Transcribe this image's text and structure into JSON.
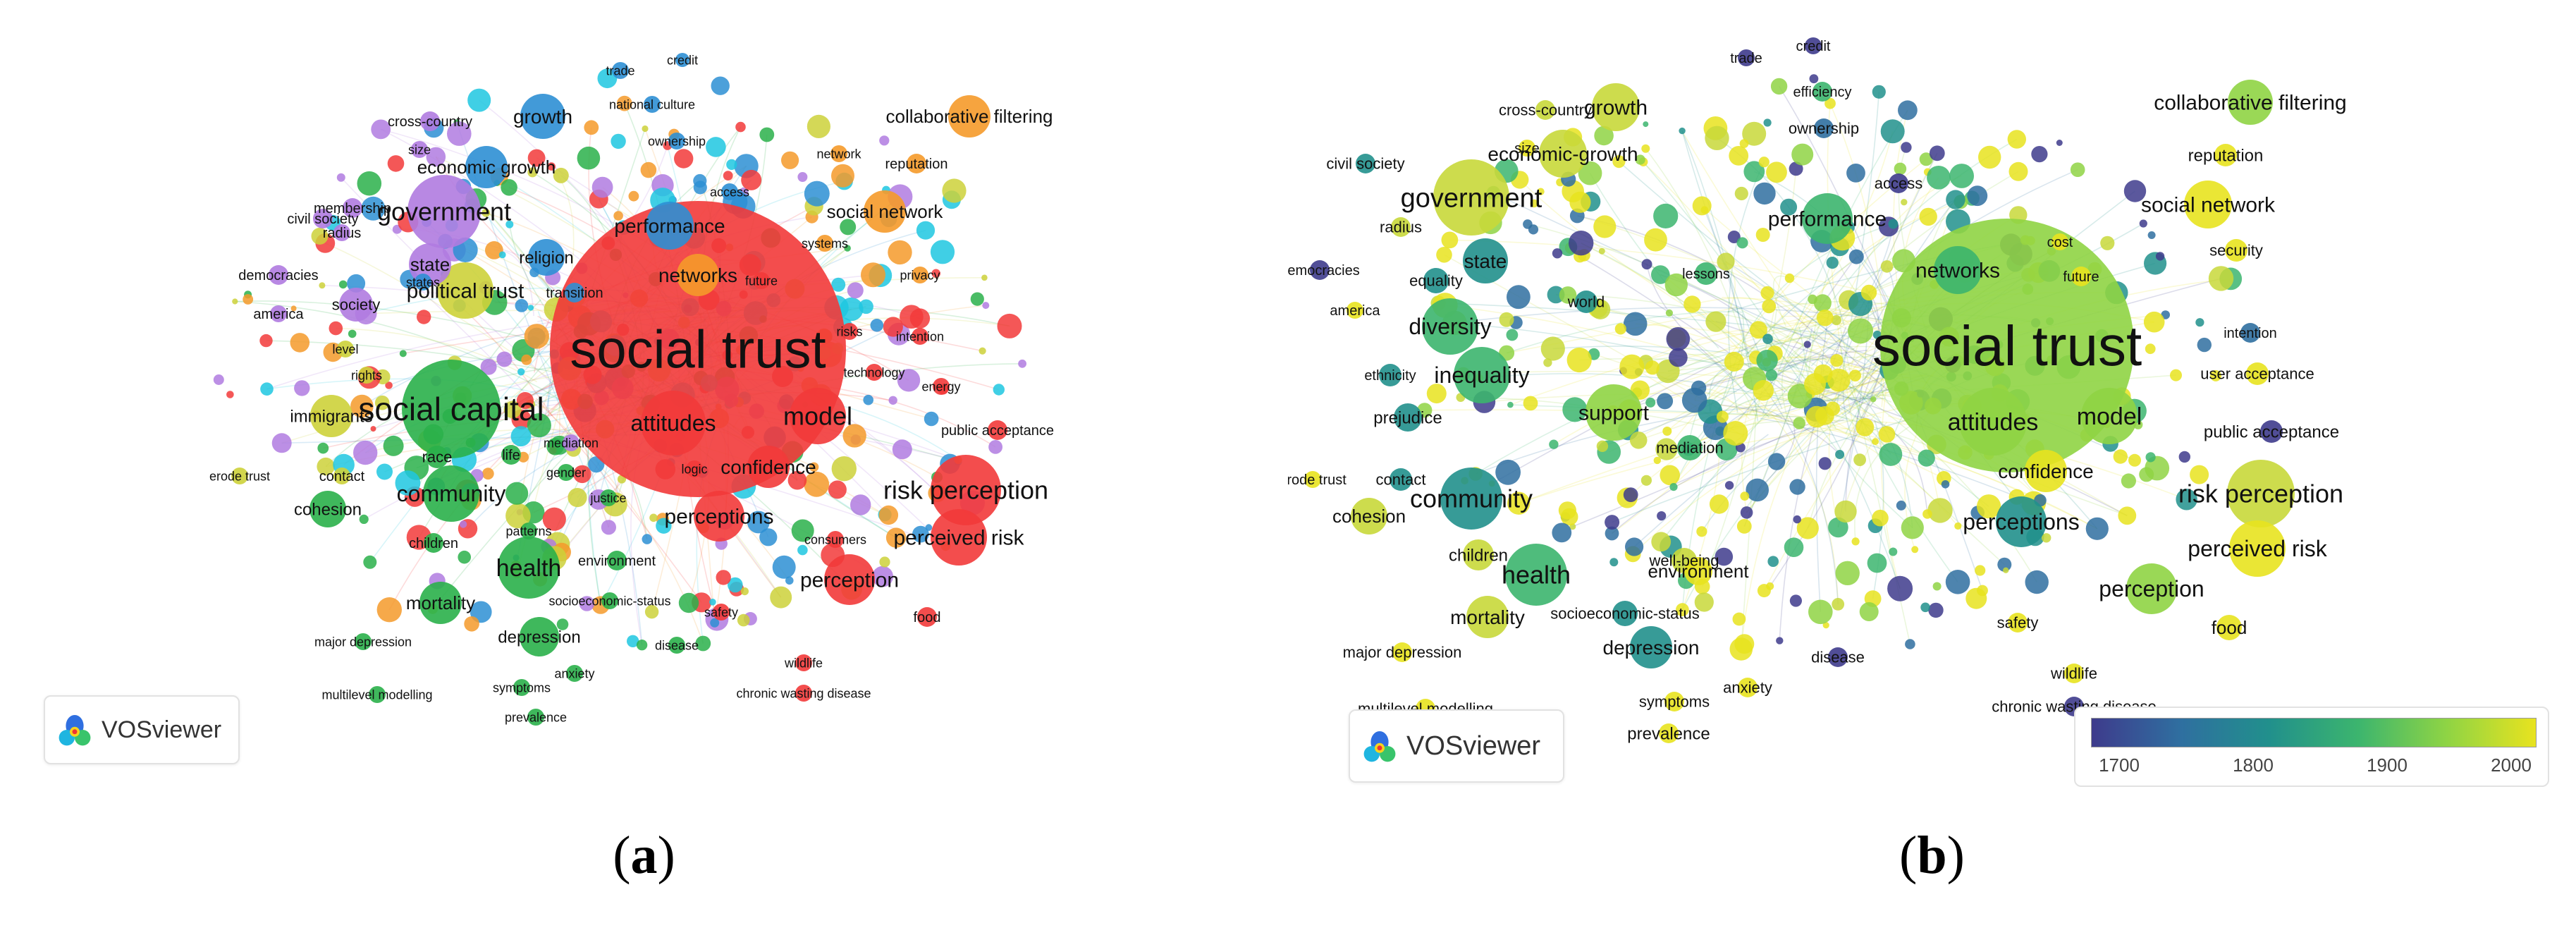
{
  "panel_a": {
    "caption_label": "a",
    "badge_text": "VOSviewer",
    "labels": [
      "social trust",
      "social capital",
      "government",
      "political trust",
      "community",
      "health",
      "attitudes",
      "model",
      "risk perception",
      "perceptions",
      "perception",
      "perceived risk",
      "confidence",
      "collaborative filtering",
      "social network",
      "networks",
      "performance",
      "growth",
      "economic growth",
      "state",
      "religion",
      "society",
      "immigrants",
      "cohesion",
      "mortality",
      "depression",
      "trade",
      "credit",
      "national culture",
      "ownership",
      "cross-country",
      "civil society",
      "membership",
      "radius",
      "democracies",
      "america",
      "states",
      "transition",
      "reputation",
      "network",
      "access",
      "systems",
      "privacy",
      "future",
      "risks",
      "intention",
      "technology",
      "energy",
      "public acceptance",
      "erode trust",
      "contact",
      "race",
      "life",
      "gender",
      "justice",
      "mediation",
      "logic",
      "patterns",
      "children",
      "environment",
      "socioeconomic-status",
      "major depression",
      "anxiety",
      "disease",
      "symptoms",
      "multilevel modelling",
      "prevalence",
      "safety",
      "wildlife",
      "chronic wasting disease",
      "consumers",
      "food",
      "size",
      "level",
      "rights"
    ]
  },
  "panel_b": {
    "caption_label": "b",
    "badge_text": "VOSviewer",
    "legend": {
      "ticks": [
        "1700",
        "1800",
        "1900",
        "2000"
      ],
      "colors": [
        "#3e3b8c",
        "#2f6fa0",
        "#21908c",
        "#3cb56e",
        "#8fd444",
        "#e8e31f"
      ]
    },
    "labels": [
      "social trust",
      "government",
      "attitudes",
      "networks",
      "diversity",
      "inequality",
      "support",
      "model",
      "risk perception",
      "perceptions",
      "community",
      "health",
      "perception",
      "perceived risk",
      "confidence",
      "collaborative filtering",
      "social network",
      "performance",
      "growth",
      "economic-growth",
      "state",
      "world",
      "lessons",
      "equality",
      "prejudice",
      "ethnicity",
      "mediation",
      "well-being",
      "environment",
      "mortality",
      "socioeconomic-status",
      "depression",
      "children",
      "cohesion",
      "erode trust",
      "contact",
      "trade",
      "credit",
      "efficiency",
      "ownership",
      "cross-country",
      "size",
      "civil society",
      "radius",
      "democracies",
      "america",
      "access",
      "reputation",
      "cost",
      "security",
      "future",
      "intention",
      "user acceptance",
      "public acceptance",
      "food",
      "safety",
      "major depression",
      "anxiety",
      "disease",
      "symptoms",
      "multilevel modelling",
      "prevalence",
      "wildlife",
      "chronic wasting disease"
    ]
  }
}
